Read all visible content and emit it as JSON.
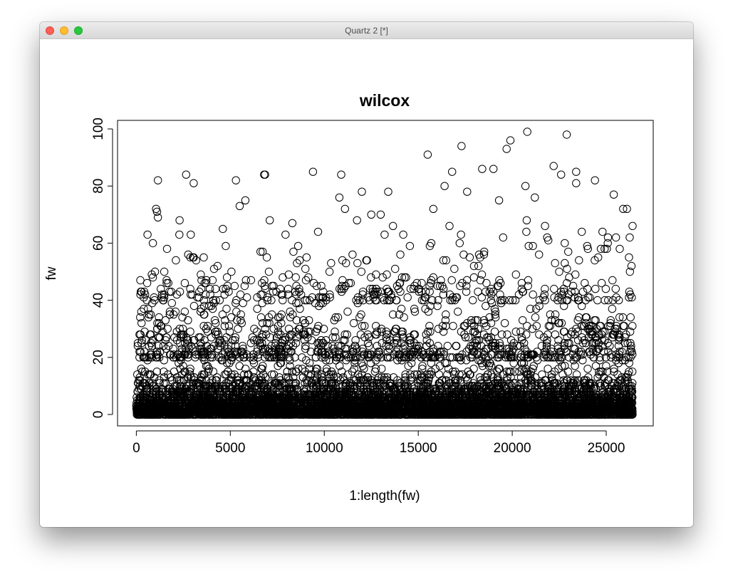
{
  "window": {
    "title": "Quartz 2 [*]"
  },
  "chart_data": {
    "type": "scatter",
    "title": "wilcox",
    "xlabel": "1:length(fw)",
    "ylabel": "fw",
    "xlim": [
      -1000,
      27500
    ],
    "ylim": [
      -4,
      103
    ],
    "xticks": [
      0,
      5000,
      10000,
      15000,
      20000,
      25000
    ],
    "xtick_labels": [
      "0",
      "5000",
      "10000",
      "15000",
      "20000",
      "25000"
    ],
    "yticks": [
      0,
      20,
      40,
      60,
      80,
      100
    ],
    "ytick_labels": [
      "0",
      "20",
      "40",
      "60",
      "80",
      "100"
    ],
    "n_points": 26400,
    "marker": "open-circle",
    "grid": false,
    "legend": "none",
    "notable_points": [
      {
        "x": 1150,
        "y": 82
      },
      {
        "x": 1050,
        "y": 72
      },
      {
        "x": 1100,
        "y": 71
      },
      {
        "x": 1150,
        "y": 69
      },
      {
        "x": 2650,
        "y": 84
      },
      {
        "x": 3050,
        "y": 81
      },
      {
        "x": 5300,
        "y": 82
      },
      {
        "x": 5800,
        "y": 75
      },
      {
        "x": 5500,
        "y": 73
      },
      {
        "x": 6800,
        "y": 84
      },
      {
        "x": 6850,
        "y": 84
      },
      {
        "x": 9400,
        "y": 85
      },
      {
        "x": 10900,
        "y": 84
      },
      {
        "x": 10800,
        "y": 76
      },
      {
        "x": 11100,
        "y": 72
      },
      {
        "x": 12000,
        "y": 78
      },
      {
        "x": 13400,
        "y": 78
      },
      {
        "x": 15500,
        "y": 91
      },
      {
        "x": 15800,
        "y": 72
      },
      {
        "x": 17300,
        "y": 94
      },
      {
        "x": 16800,
        "y": 85
      },
      {
        "x": 18400,
        "y": 86
      },
      {
        "x": 19000,
        "y": 86
      },
      {
        "x": 17600,
        "y": 78
      },
      {
        "x": 19700,
        "y": 93
      },
      {
        "x": 19900,
        "y": 96
      },
      {
        "x": 20800,
        "y": 99
      },
      {
        "x": 21200,
        "y": 76
      },
      {
        "x": 22200,
        "y": 87
      },
      {
        "x": 22600,
        "y": 84
      },
      {
        "x": 22900,
        "y": 98
      },
      {
        "x": 23400,
        "y": 85
      },
      {
        "x": 23400,
        "y": 81
      },
      {
        "x": 24400,
        "y": 82
      },
      {
        "x": 25400,
        "y": 77
      },
      {
        "x": 25900,
        "y": 72
      },
      {
        "x": 26100,
        "y": 72
      },
      {
        "x": 26400,
        "y": 66
      },
      {
        "x": 19300,
        "y": 75
      },
      {
        "x": 20700,
        "y": 80
      },
      {
        "x": 16400,
        "y": 80
      },
      {
        "x": 8300,
        "y": 67
      },
      {
        "x": 7100,
        "y": 68
      },
      {
        "x": 4600,
        "y": 65
      },
      {
        "x": 2300,
        "y": 68
      },
      {
        "x": 14200,
        "y": 63
      },
      {
        "x": 12500,
        "y": 70
      },
      {
        "x": 13000,
        "y": 70
      },
      {
        "x": 24800,
        "y": 64
      },
      {
        "x": 23700,
        "y": 64
      }
    ]
  }
}
